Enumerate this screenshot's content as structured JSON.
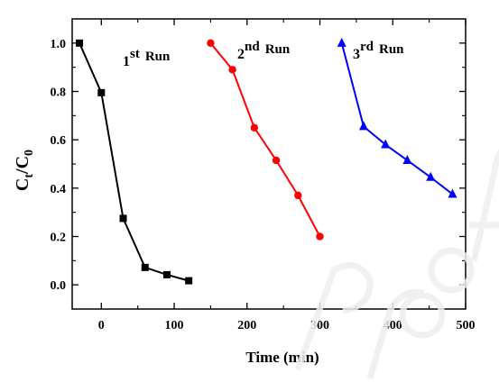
{
  "chart_data": {
    "type": "line",
    "xlabel": "Time (min)",
    "ylabel": {
      "main": "C",
      "sub1": "t",
      "mid": "/C",
      "sub2": "0"
    },
    "xlim": [
      -40,
      500
    ],
    "ylim": [
      -0.1,
      1.1
    ],
    "xticks": [
      0,
      100,
      200,
      300,
      400,
      500
    ],
    "yticks": [
      0.0,
      0.2,
      0.4,
      0.6,
      0.8,
      1.0
    ],
    "xtick_labels": [
      "0",
      "100",
      "200",
      "300",
      "400",
      "500"
    ],
    "ytick_labels": [
      "0.0",
      "0.2",
      "0.4",
      "0.6",
      "0.8",
      "1.0"
    ],
    "grid": false,
    "series": [
      {
        "label_num": "1",
        "label_sup": "st",
        "label_word": "Run",
        "color": "#000000",
        "marker": "square",
        "x": [
          -30,
          0,
          30,
          60,
          90,
          120
        ],
        "y": [
          1.0,
          0.795,
          0.275,
          0.072,
          0.042,
          0.017
        ]
      },
      {
        "label_num": "2",
        "label_sup": "nd",
        "label_word": "Run",
        "color": "#ff0000",
        "marker": "circle",
        "x": [
          150,
          180,
          210,
          240,
          270,
          300
        ],
        "y": [
          1.0,
          0.89,
          0.65,
          0.515,
          0.37,
          0.2
        ]
      },
      {
        "label_num": "3",
        "label_sup": "rd",
        "label_word": "Run",
        "color": "#0000ff",
        "marker": "triangle",
        "x": [
          330,
          360,
          390,
          420,
          452,
          482
        ],
        "y": [
          1.0,
          0.655,
          0.58,
          0.515,
          0.445,
          0.375
        ]
      }
    ]
  }
}
